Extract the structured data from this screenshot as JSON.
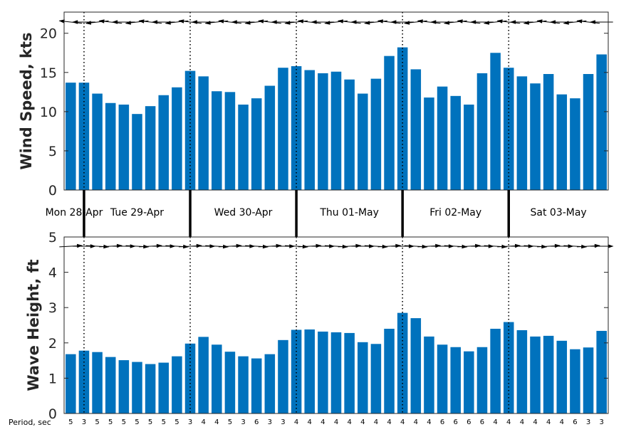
{
  "colors": {
    "bar": "#0072BD",
    "axis": "#262626",
    "arrow": "#000000",
    "background": "#ffffff"
  },
  "chart_data": [
    {
      "type": "bar",
      "ylabel": "Wind Speed, kts",
      "ylim": [
        0,
        22.7
      ],
      "yticks": [
        "0",
        "5",
        "10",
        "15",
        "20"
      ],
      "grid": false,
      "series": [
        {
          "values": [
            13.7,
            13.7,
            12.3,
            11.1,
            10.9,
            9.7,
            10.7,
            12.1,
            13.1,
            15.2,
            14.5,
            12.6,
            12.5,
            10.9,
            11.7,
            13.3,
            15.6,
            15.8,
            15.3,
            14.9,
            15.1,
            14.1,
            12.3,
            14.2,
            17.1,
            18.2,
            15.4,
            11.8,
            13.2,
            12.0,
            10.9,
            14.9,
            17.5,
            15.6,
            14.5,
            13.6,
            14.8,
            12.2,
            11.7,
            14.8,
            17.3
          ]
        }
      ],
      "direction_arrows": "wind direction arrows pointing left-west, one per bar"
    },
    {
      "type": "bar",
      "ylabel": "Wave Height, ft",
      "ylim": [
        0,
        5
      ],
      "yticks": [
        "0",
        "1",
        "2",
        "3",
        "4",
        "5"
      ],
      "grid": false,
      "series": [
        {
          "values": [
            1.68,
            1.78,
            1.74,
            1.6,
            1.51,
            1.46,
            1.4,
            1.44,
            1.62,
            1.98,
            2.17,
            1.95,
            1.75,
            1.62,
            1.56,
            1.68,
            2.08,
            2.37,
            2.38,
            2.32,
            2.3,
            2.28,
            2.02,
            1.97,
            2.4,
            2.85,
            2.7,
            2.18,
            1.95,
            1.88,
            1.76,
            1.88,
            2.4,
            2.59,
            2.36,
            2.18,
            2.2,
            2.06,
            1.82,
            1.87,
            2.34
          ]
        }
      ],
      "period_label": "Period, sec",
      "periods": [
        "5",
        "3",
        "5",
        "5",
        "5",
        "5",
        "5",
        "5",
        "5",
        "3",
        "4",
        "4",
        "5",
        "3",
        "6",
        "3",
        "3",
        "4",
        "4",
        "4",
        "4",
        "4",
        "4",
        "4",
        "4",
        "4",
        "4",
        "4",
        "6",
        "6",
        "6",
        "6",
        "4",
        "4",
        "4",
        "4",
        "4",
        "4",
        "6",
        "3",
        "3"
      ]
    }
  ],
  "days": [
    {
      "label": "Mon 28-Apr",
      "start": 0,
      "end": 1.5
    },
    {
      "label": "Tue 29-Apr",
      "start": 1.5,
      "end": 9.5
    },
    {
      "label": "Wed 30-Apr",
      "start": 9.5,
      "end": 17.5
    },
    {
      "label": "Thu 01-May",
      "start": 17.5,
      "end": 25.5
    },
    {
      "label": "Fri 02-May",
      "start": 25.5,
      "end": 33.5
    },
    {
      "label": "Sat 03-May",
      "start": 33.5,
      "end": 41
    }
  ]
}
